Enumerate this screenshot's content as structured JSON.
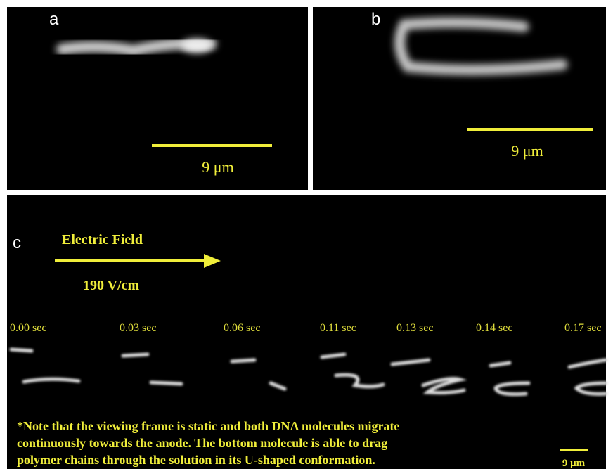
{
  "panels": {
    "a": {
      "label": "a",
      "scale": "9 μm"
    },
    "b": {
      "label": "b",
      "scale": "9 μm"
    },
    "c": {
      "label": "c",
      "field": "Electric Field",
      "strength": "190 V/cm",
      "times": [
        "0.00 sec",
        "0.03 sec",
        "0.06 sec",
        "0.11 sec",
        "0.13 sec",
        "0.14 sec",
        "0.17 sec"
      ],
      "note": [
        "*Note that the viewing frame is static and both DNA molecules migrate",
        "continuously towards the anode.  The bottom molecule is able to drag",
        "polymer chains through the solution in its U-shaped conformation."
      ],
      "scale": "9 μm"
    }
  }
}
